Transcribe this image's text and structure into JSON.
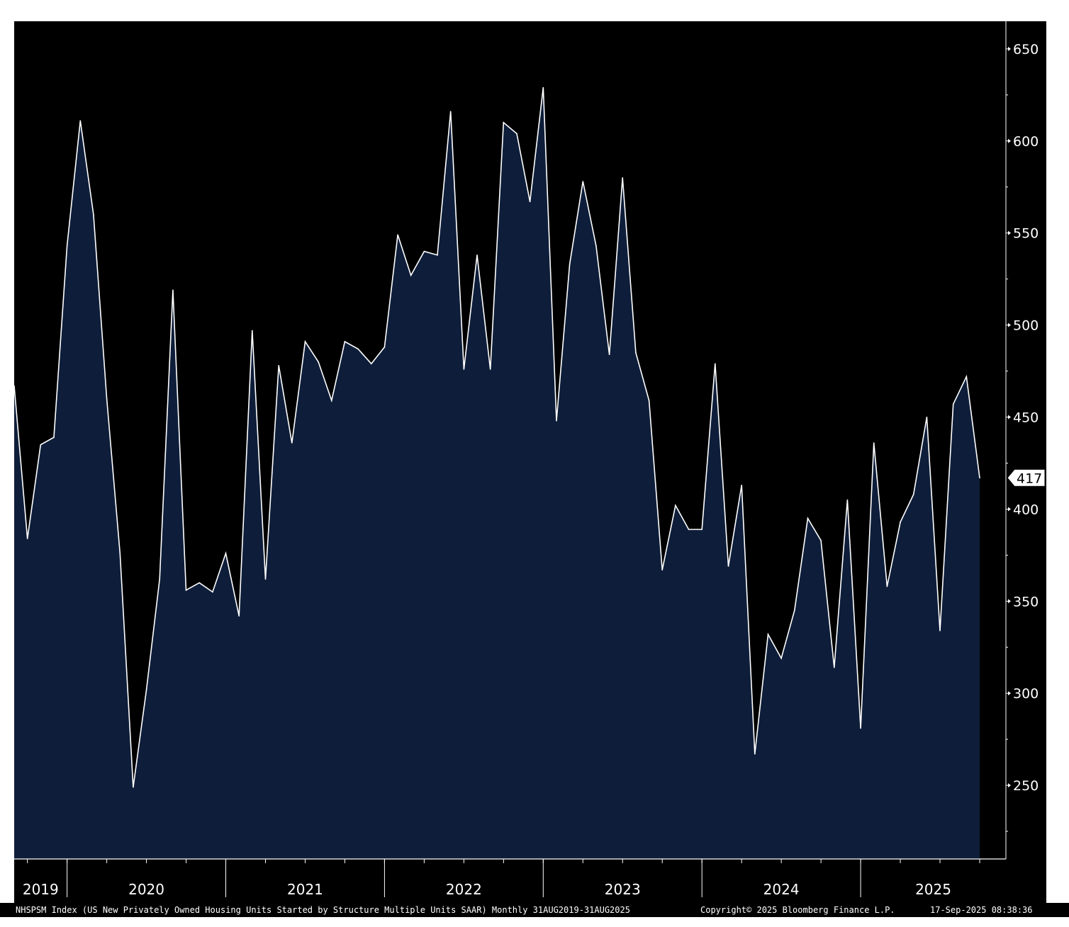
{
  "chart_data": {
    "type": "area",
    "series": [
      {
        "name": "",
        "values": [
          467,
          384,
          435,
          439,
          543,
          611,
          560,
          460,
          376,
          249,
          302,
          362,
          519,
          356,
          360,
          355,
          376,
          342,
          497,
          362,
          478,
          436,
          491,
          480,
          459,
          491,
          487,
          479,
          488,
          549,
          527,
          540,
          538,
          616,
          476,
          538,
          476,
          610,
          604,
          567,
          629,
          448,
          533,
          578,
          543,
          484,
          580,
          485,
          459,
          367,
          402,
          389,
          389,
          479,
          369,
          413,
          267,
          332,
          319,
          345,
          395,
          383,
          314,
          405,
          281,
          436,
          358,
          393,
          408,
          450,
          334,
          457,
          472,
          417
        ]
      }
    ],
    "ylim": [
      210,
      665
    ],
    "yticks": [
      "650",
      "600",
      "550",
      "500",
      "450",
      "400",
      "350",
      "300",
      "250"
    ],
    "year_labels": [
      "2019",
      "2020",
      "2021",
      "2022",
      "2023",
      "2024",
      "2025"
    ],
    "last_value_label": "417",
    "background": "#000000",
    "fill_color": "#0e1e3a",
    "line_color": "#ffffff",
    "grid": false
  },
  "footer": {
    "description": "NHSPSM Index (US New Privately Owned Housing Units Started by Structure Multiple Units SAAR) Monthly 31AUG2019-31AUG2025",
    "copyright": "Copyright© 2025 Bloomberg Finance L.P.",
    "timestamp": "17-Sep-2025 08:38:36"
  }
}
